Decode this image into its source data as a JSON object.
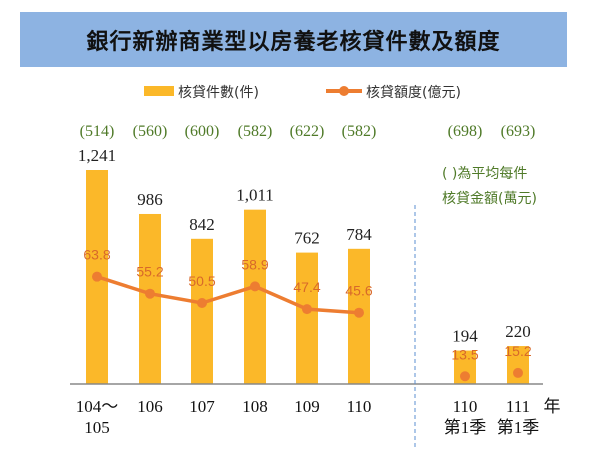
{
  "chart_data": {
    "type": "bar+line",
    "title": "銀行新辦商業型以房養老核貸件數及額度",
    "categories": [
      [
        "104～",
        "105"
      ],
      [
        "106"
      ],
      [
        "107"
      ],
      [
        "108"
      ],
      [
        "109"
      ],
      [
        "110"
      ],
      [
        "110",
        "第1季"
      ],
      [
        "111",
        "第1季"
      ]
    ],
    "x_unit": "年",
    "series": [
      {
        "name": "核貸件數(件)",
        "type": "bar",
        "color": "#fbb829",
        "values": [
          1241,
          986,
          842,
          1011,
          762,
          784,
          194,
          220
        ],
        "labels": [
          "1,241",
          "986",
          "842",
          "1,011",
          "762",
          "784",
          "194",
          "220"
        ]
      },
      {
        "name": "核貸額度(億元)",
        "type": "line",
        "color": "#ed7d31",
        "values": [
          63.8,
          55.2,
          50.5,
          58.9,
          47.4,
          45.6,
          13.5,
          15.2
        ],
        "labels": [
          "63.8",
          "55.2",
          "50.5",
          "58.9",
          "47.4",
          "45.6",
          "13.5",
          "15.2"
        ],
        "connected_points": 6
      }
    ],
    "average_per_case": [
      "(514)",
      "(560)",
      "(600)",
      "(582)",
      "(622)",
      "(582)",
      "(698)",
      "(693)"
    ],
    "annotation": [
      "( )為平均每件",
      "核貸金額(萬元)"
    ],
    "legend": "top",
    "grid": false
  }
}
